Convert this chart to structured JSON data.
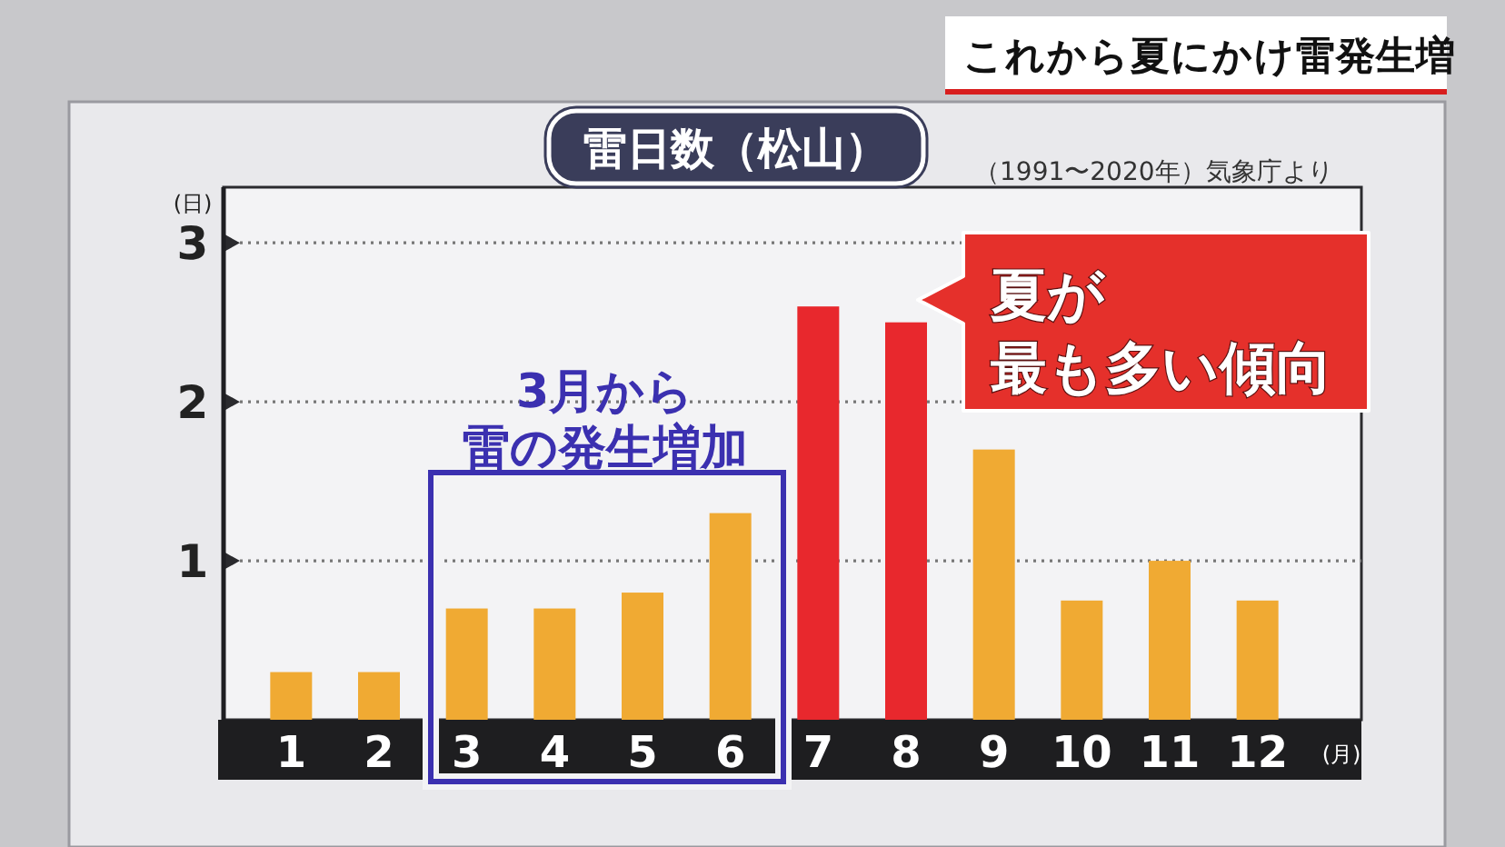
{
  "chart_data": {
    "type": "bar",
    "title": "雷日数（松山）",
    "xlabel": "(月)",
    "ylabel": "(日)",
    "categories": [
      "1",
      "2",
      "3",
      "4",
      "5",
      "6",
      "7",
      "8",
      "9",
      "10",
      "11",
      "12"
    ],
    "values": [
      0.3,
      0.3,
      0.7,
      0.7,
      0.8,
      1.3,
      2.6,
      2.5,
      1.7,
      0.75,
      1.0,
      0.75
    ],
    "colors": [
      "#f0aa33",
      "#f0aa33",
      "#f0aa33",
      "#f0aa33",
      "#f0aa33",
      "#f0aa33",
      "#e8282d",
      "#e8282d",
      "#f0aa33",
      "#f0aa33",
      "#f0aa33",
      "#f0aa33"
    ],
    "ylim": [
      0,
      3.35
    ],
    "yticks": [
      1,
      2,
      3
    ],
    "grid": "y",
    "annotations": [
      "これから夏にかけ雷発生増",
      "（1991〜2020年）気象庁より",
      "3月から雷の発生増加",
      "夏が最も多い傾向"
    ]
  }
}
